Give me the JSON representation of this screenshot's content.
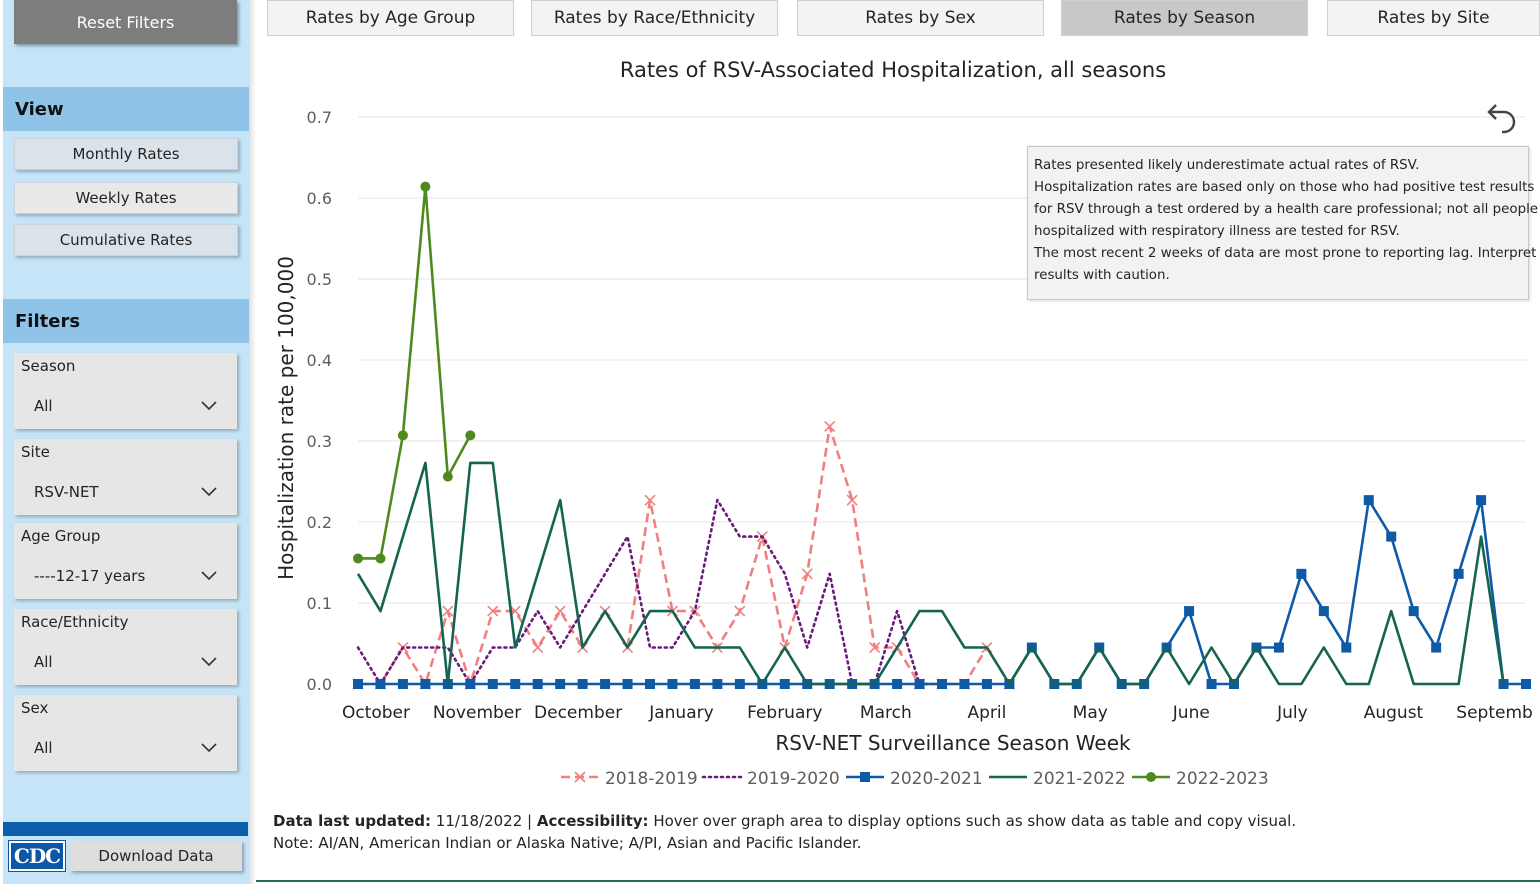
{
  "sidebar": {
    "reset_label": "Reset Filters",
    "view_heading": "View",
    "view_buttons": [
      "Monthly Rates",
      "Weekly Rates",
      "Cumulative Rates"
    ],
    "filters_heading": "Filters",
    "filters": [
      {
        "label": "Season",
        "value": "All"
      },
      {
        "label": "Site",
        "value": "RSV-NET"
      },
      {
        "label": "Age Group",
        "value": "----12-17 years"
      },
      {
        "label": "Race/Ethnicity",
        "value": "All"
      },
      {
        "label": "Sex",
        "value": "All"
      }
    ],
    "logo_text": "CDC",
    "download_label": "Download Data"
  },
  "tabs": [
    "Rates by Age Group",
    "Rates by Race/Ethnicity",
    "Rates by Sex",
    "Rates by Season",
    "Rates by Site"
  ],
  "active_tab": "Rates by Season",
  "tooltip": {
    "lines": [
      "Rates presented likely underestimate actual rates of RSV.",
      "Hospitalization rates are based only on those who had positive test results",
      "for RSV through a test ordered by a health care professional; not all people",
      "hospitalized with respiratory illness are tested for RSV.",
      "The most recent 2 weeks of data are most prone to reporting lag. Interpret",
      "results with caution."
    ]
  },
  "footer": {
    "updated_label": "Data last updated:",
    "updated_value": " 11/18/2022 | ",
    "accessibility_label": "Accessibility:",
    "accessibility_text": " Hover over graph area to display options such as show data as table and copy visual.",
    "note": "Note: AI/AN, American Indian or Alaska Native; A/PI, Asian and Pacific Islander."
  },
  "colors": {
    "s2018": "#f08080",
    "s2019": "#6a1b7a",
    "s2020": "#0e5aa7",
    "s2021": "#146450",
    "s2022": "#4e8a1e"
  },
  "chart_data": {
    "type": "line",
    "title": "Rates of RSV-Associated Hospitalization, all seasons",
    "xlabel": "RSV-NET Surveillance Season Week",
    "ylabel": "Hospitalization rate per 100,000",
    "ylim": [
      0,
      0.7
    ],
    "yticks": [
      "0.0",
      "0.1",
      "0.2",
      "0.3",
      "0.4",
      "0.5",
      "0.6",
      "0.7"
    ],
    "xlim": [
      0,
      52
    ],
    "month_labels": [
      "October",
      "November",
      "December",
      "January",
      "February",
      "March",
      "April",
      "May",
      "June",
      "July",
      "August",
      "Septemb"
    ],
    "month_weeks": [
      0.8,
      5.3,
      9.8,
      14.4,
      19,
      23.5,
      28,
      32.6,
      37.1,
      41.6,
      46.1,
      50.6
    ],
    "legend_position": "bottom",
    "series": [
      {
        "name": "2018-2019",
        "style": "dashed",
        "marker": "x",
        "x": [
          0,
          1,
          2,
          3,
          4,
          5,
          6,
          7,
          8,
          9,
          10,
          11,
          12,
          13,
          14,
          15,
          16,
          17,
          18,
          19,
          20,
          21,
          22,
          23,
          24,
          25,
          26,
          27,
          28,
          29
        ],
        "values": [
          0,
          0,
          0.045,
          0,
          0.09,
          0,
          0.09,
          0.09,
          0.045,
          0.09,
          0.045,
          0.09,
          0.045,
          0.227,
          0.09,
          0.09,
          0.045,
          0.09,
          0.182,
          0.045,
          0.136,
          0.318,
          0.227,
          0.045,
          0.045,
          0,
          0,
          0,
          0.045,
          0
        ]
      },
      {
        "name": "2019-2020",
        "style": "dotted",
        "marker": "none",
        "x": [
          0,
          1,
          2,
          3,
          4,
          5,
          6,
          7,
          8,
          9,
          10,
          11,
          12,
          13,
          14,
          15,
          16,
          17,
          18,
          19,
          20,
          21,
          22,
          23,
          24,
          25,
          26
        ],
        "values": [
          0.045,
          0,
          0.045,
          0.045,
          0.045,
          0,
          0.045,
          0.045,
          0.09,
          0.045,
          0.09,
          0.136,
          0.182,
          0.045,
          0.045,
          0.09,
          0.227,
          0.182,
          0.182,
          0.136,
          0.045,
          0.136,
          0,
          0,
          0.09,
          0,
          0
        ]
      },
      {
        "name": "2020-2021",
        "style": "solid",
        "marker": "square",
        "x": [
          0,
          1,
          2,
          3,
          4,
          5,
          6,
          7,
          8,
          9,
          10,
          11,
          12,
          13,
          14,
          15,
          16,
          17,
          18,
          19,
          20,
          21,
          22,
          23,
          24,
          25,
          26,
          27,
          28,
          29,
          30,
          31,
          32,
          33,
          34,
          35,
          36,
          37,
          38,
          39,
          40,
          41,
          42,
          43,
          44,
          45,
          46,
          47,
          48,
          49,
          50,
          51,
          52
        ],
        "values": [
          0,
          0,
          0,
          0,
          0,
          0,
          0,
          0,
          0,
          0,
          0,
          0,
          0,
          0,
          0,
          0,
          0,
          0,
          0,
          0,
          0,
          0,
          0,
          0,
          0,
          0,
          0,
          0,
          0,
          0,
          0.045,
          0,
          0,
          0.045,
          0,
          0,
          0.045,
          0.09,
          0,
          0,
          0.045,
          0.045,
          0.136,
          0.09,
          0.045,
          0.227,
          0.182,
          0.09,
          0.045,
          0.136,
          0.227,
          0,
          0
        ]
      },
      {
        "name": "2021-2022",
        "style": "solid",
        "marker": "none",
        "x": [
          0,
          1,
          2,
          3,
          4,
          5,
          6,
          7,
          8,
          9,
          10,
          11,
          12,
          13,
          14,
          15,
          16,
          17,
          18,
          19,
          20,
          21,
          22,
          23,
          24,
          25,
          26,
          27,
          28,
          29,
          30,
          31,
          32,
          33,
          34,
          35,
          36,
          37,
          38,
          39,
          40,
          41,
          42,
          43,
          44,
          45,
          46,
          47,
          48,
          49,
          50,
          51
        ],
        "values": [
          0.136,
          0.09,
          0.182,
          0.273,
          0,
          0.273,
          0.273,
          0.045,
          0.136,
          0.227,
          0.045,
          0.09,
          0.045,
          0.09,
          0.09,
          0.045,
          0.045,
          0.045,
          0,
          0.045,
          0,
          0,
          0,
          0,
          0.045,
          0.09,
          0.09,
          0.045,
          0.045,
          0,
          0.045,
          0,
          0,
          0.045,
          0,
          0,
          0.045,
          0,
          0.045,
          0,
          0.045,
          0,
          0,
          0.045,
          0,
          0,
          0.09,
          0,
          0,
          0,
          0.182,
          0
        ]
      },
      {
        "name": "2022-2023",
        "style": "solid",
        "marker": "circle",
        "x": [
          0,
          1,
          2,
          3,
          4,
          5
        ],
        "values": [
          0.155,
          0.155,
          0.307,
          0.614,
          0.256,
          0.307
        ]
      }
    ]
  }
}
